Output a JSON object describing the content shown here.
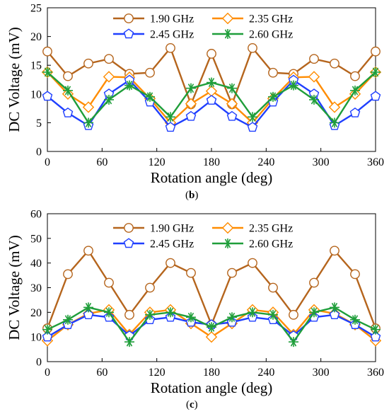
{
  "charts": [
    {
      "caption_open": "(",
      "caption_letter": "b",
      "caption_close": ")",
      "chart_data": {
        "type": "line",
        "xlabel": "Rotation angle (deg)",
        "ylabel": "DC Voltage (mV)",
        "xlim": [
          0,
          360
        ],
        "ylim": [
          0,
          25
        ],
        "xticks": [
          0,
          60,
          120,
          180,
          240,
          300,
          360
        ],
        "yticks": [
          0,
          5,
          10,
          15,
          20,
          25
        ],
        "grid": false,
        "legend": "top-center",
        "x": [
          0,
          22.5,
          45,
          67.5,
          90,
          112.5,
          135,
          157.5,
          180,
          202.5,
          225,
          247.5,
          270,
          292.5,
          315,
          337.5,
          360
        ],
        "series": [
          {
            "name": "1.90 GHz",
            "color": "#b5651d",
            "marker": "circle",
            "values": [
              17.4,
              13.1,
              15.3,
              16.1,
              13.5,
              13.7,
              18.0,
              8.2,
              17.0,
              8.2,
              18.0,
              13.7,
              13.5,
              16.1,
              15.3,
              13.1,
              17.4
            ]
          },
          {
            "name": "2.35 GHz",
            "color": "#ff8c00",
            "marker": "diamond",
            "values": [
              13.8,
              10.0,
              7.7,
              13.0,
              12.9,
              9.2,
              5.0,
              8.3,
              10.5,
              8.3,
              5.0,
              9.2,
              12.9,
              13.0,
              7.7,
              10.0,
              13.8
            ]
          },
          {
            "name": "2.45 GHz",
            "color": "#1f3fff",
            "marker": "pentagon",
            "values": [
              9.6,
              6.7,
              4.5,
              10.0,
              12.4,
              8.6,
              4.2,
              6.1,
              8.9,
              6.1,
              4.2,
              8.6,
              12.4,
              10.0,
              4.5,
              6.7,
              9.6
            ]
          },
          {
            "name": "2.60 GHz",
            "color": "#1f9e3a",
            "marker": "asterisk",
            "values": [
              13.8,
              10.6,
              5.0,
              9.0,
              11.5,
              9.5,
              6.0,
              11.0,
              12.0,
              11.0,
              6.0,
              9.5,
              11.5,
              9.0,
              5.0,
              10.6,
              13.8
            ]
          }
        ]
      }
    },
    {
      "caption_open": "(",
      "caption_letter": "c",
      "caption_close": ")",
      "chart_data": {
        "type": "line",
        "xlabel": "Rotation angle (deg)",
        "ylabel": "DC Voltage (mV)",
        "xlim": [
          0,
          360
        ],
        "ylim": [
          0,
          60
        ],
        "xticks": [
          0,
          60,
          120,
          180,
          240,
          300,
          360
        ],
        "yticks": [
          0,
          10,
          20,
          30,
          40,
          50,
          60
        ],
        "grid": false,
        "legend": "top-center",
        "x": [
          0,
          22.5,
          45,
          67.5,
          90,
          112.5,
          135,
          157.5,
          180,
          202.5,
          225,
          247.5,
          270,
          292.5,
          315,
          337.5,
          360
        ],
        "series": [
          {
            "name": "1.90 GHz",
            "color": "#b5651d",
            "marker": "circle",
            "values": [
              13.5,
              35.5,
              45.0,
              32.0,
              19.0,
              30.0,
              40.0,
              36.0,
              15.0,
              36.0,
              40.0,
              30.0,
              19.0,
              32.0,
              45.0,
              35.5,
              13.5
            ]
          },
          {
            "name": "2.35 GHz",
            "color": "#ff8c00",
            "marker": "diamond",
            "values": [
              8.5,
              15.0,
              19.5,
              21.0,
              11.0,
              20.0,
              21.0,
              15.5,
              10.0,
              15.5,
              21.0,
              20.0,
              11.0,
              21.0,
              19.5,
              15.0,
              8.5
            ]
          },
          {
            "name": "2.45 GHz",
            "color": "#1f3fff",
            "marker": "pentagon",
            "values": [
              10.0,
              15.0,
              19.0,
              18.0,
              10.5,
              17.0,
              18.0,
              16.0,
              15.0,
              16.0,
              18.0,
              17.0,
              10.5,
              18.0,
              19.0,
              15.0,
              10.0
            ]
          },
          {
            "name": "2.60 GHz",
            "color": "#1f9e3a",
            "marker": "asterisk",
            "values": [
              13.0,
              17.0,
              22.0,
              20.0,
              8.0,
              19.0,
              20.0,
              18.0,
              14.0,
              18.0,
              20.0,
              19.0,
              8.0,
              20.0,
              22.0,
              17.0,
              13.0
            ]
          }
        ]
      }
    }
  ]
}
